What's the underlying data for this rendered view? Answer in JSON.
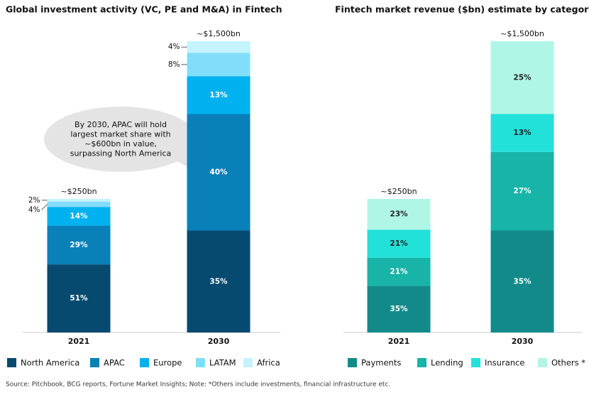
{
  "chart_data": [
    {
      "type": "stacked_bar",
      "title": "Global investment activity (VC, PE and M&A) in Fintech",
      "categories": [
        "2021",
        "2030"
      ],
      "total_labels": [
        "~$250bn",
        "~$1,500bn"
      ],
      "series": [
        {
          "name": "North America",
          "color": "#074a70",
          "values": [
            51,
            35
          ],
          "value_labels": [
            "51%",
            "35%"
          ]
        },
        {
          "name": "APAC",
          "color": "#0a80b9",
          "values": [
            29,
            40
          ],
          "value_labels": [
            "29%",
            "40%"
          ]
        },
        {
          "name": "Europe",
          "color": "#00b1ef",
          "values": [
            14,
            13
          ],
          "value_labels": [
            "14%",
            "13%"
          ]
        },
        {
          "name": "LATAM",
          "color": "#82ddfb",
          "values": [
            4,
            8
          ],
          "value_labels": [
            "4%",
            "8%"
          ]
        },
        {
          "name": "Africa",
          "color": "#c4f3fd",
          "values": [
            2,
            4
          ],
          "value_labels": [
            "2%",
            "4%"
          ]
        }
      ],
      "annotation": [
        "By 2030, APAC will hold",
        "largest market share with",
        "~$600bn in value,",
        "surpassing North America"
      ]
    },
    {
      "type": "stacked_bar",
      "title": "Fintech market revenue ($bn) estimate by category",
      "categories": [
        "2021",
        "2030"
      ],
      "total_labels": [
        "~$250bn",
        "~$1,500bn"
      ],
      "series": [
        {
          "name": "Payments",
          "color": "#138a8a",
          "values": [
            35,
            35
          ],
          "value_labels": [
            "35%",
            "35%"
          ]
        },
        {
          "name": "Lending",
          "color": "#17b4a7",
          "values": [
            21,
            27
          ],
          "value_labels": [
            "21%",
            "27%"
          ]
        },
        {
          "name": "Insurance",
          "color": "#22e1d9",
          "values": [
            21,
            13
          ],
          "value_labels": [
            "21%",
            "13%"
          ]
        },
        {
          "name": "Others *",
          "color": "#b0f6e7",
          "values": [
            23,
            25
          ],
          "value_labels": [
            "23%",
            "25%"
          ]
        }
      ]
    }
  ],
  "footnote": "Source: Pitchbook, BCG reports, Fortune Market Insights; Note: *Others include investments, financial infrastructure etc."
}
